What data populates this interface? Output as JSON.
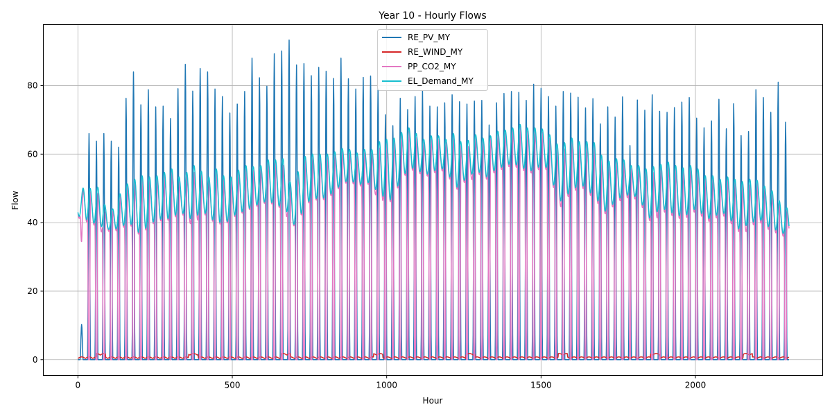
{
  "chart_data": {
    "type": "line",
    "title": "Year 10 - Hourly Flows",
    "xlabel": "Hour",
    "ylabel": "Flow",
    "xlim": [
      -112,
      2412
    ],
    "ylim": [
      -4.6,
      97.8
    ],
    "xticks": [
      0,
      500,
      1000,
      1500,
      2000
    ],
    "yticks": [
      0,
      20,
      40,
      60,
      80
    ],
    "grid": true,
    "legend_position": "top-center",
    "hours": 2304,
    "series": [
      {
        "name": "RE_PV_MY",
        "color": "#1f77b4",
        "description": "daily solar peaks, night 0",
        "daily_peaks": [
          10.3,
          66.0,
          63.8,
          66.0,
          63.8,
          62.0,
          76.3,
          84.0,
          74.4,
          78.8,
          73.8,
          74.0,
          70.4,
          79.1,
          86.2,
          78.4,
          85.0,
          84.0,
          79.0,
          76.8,
          72.0,
          74.6,
          78.3,
          88.0,
          82.3,
          79.8,
          89.3,
          90.1,
          93.3,
          86.0,
          86.4,
          82.9,
          85.3,
          84.2,
          82.1,
          88.0,
          82.0,
          79.0,
          82.4,
          82.8,
          79.1,
          71.5,
          68.3,
          76.3,
          73.0,
          76.8,
          78.4,
          74.0,
          73.8,
          75.0,
          77.3,
          75.3,
          74.6,
          75.5,
          75.7,
          68.5,
          75.0,
          77.7,
          78.3,
          78.0,
          75.7,
          80.4,
          79.2,
          76.8,
          74.0,
          78.3,
          77.8,
          76.6,
          73.5,
          76.2,
          68.8,
          73.8,
          70.8,
          76.7,
          62.5,
          75.8,
          72.8,
          77.3,
          72.5,
          72.2,
          73.6,
          75.2,
          76.5,
          70.5,
          67.7,
          69.7,
          76.0,
          67.4,
          74.7,
          65.4,
          66.6,
          78.8,
          76.5,
          72.2,
          81.0,
          69.3,
          66.8,
          71.5,
          76.0
        ]
      },
      {
        "name": "RE_WIND_MY",
        "color": "#d62728",
        "description": "low, 0 to 2"
      },
      {
        "name": "PP_CO2_MY",
        "color": "#e377c2",
        "description": "daily cycle between 0 and demand"
      },
      {
        "name": "EL_Demand_MY",
        "color": "#17becf",
        "description": "daily demand minima and maxima",
        "daily_min": [
          42,
          41,
          40,
          39,
          38,
          38,
          39,
          40,
          37,
          38,
          40,
          41,
          41,
          42,
          43,
          41,
          42,
          43,
          41,
          40,
          40,
          42,
          43,
          44,
          45,
          46,
          46,
          45,
          44,
          39,
          42,
          46,
          47,
          47,
          48,
          50,
          52,
          52,
          51,
          52,
          50,
          48,
          46,
          50,
          54,
          56,
          55,
          54,
          55,
          56,
          54,
          50,
          52,
          54,
          55,
          53,
          55,
          56,
          57,
          57,
          56,
          55,
          56,
          57,
          52,
          46,
          48,
          50,
          51,
          49,
          47,
          43,
          45,
          47,
          48,
          48,
          46,
          41,
          43,
          44,
          43,
          42,
          42,
          44,
          43,
          41,
          42,
          43,
          41,
          38,
          39,
          40,
          41,
          39,
          38,
          37,
          36,
          34,
          38
        ],
        "daily_max": [
          46,
          52,
          49,
          51,
          42,
          45,
          50,
          52,
          53,
          54,
          53,
          54,
          55,
          56,
          52,
          56,
          57,
          54,
          53,
          57,
          52,
          54,
          56,
          57,
          56,
          57,
          59,
          58,
          59,
          48,
          58,
          60,
          60,
          60,
          60,
          61,
          62,
          61,
          60,
          62,
          61,
          65,
          64,
          65,
          67,
          68,
          65,
          64,
          66,
          65,
          64,
          67,
          62,
          65,
          66,
          64,
          66,
          67,
          67,
          68,
          69,
          67,
          68,
          67,
          65,
          62,
          64,
          65,
          63,
          64,
          63,
          58,
          58,
          59,
          58,
          56,
          57,
          55,
          57,
          57,
          58,
          56,
          56,
          57,
          55,
          53,
          54,
          52,
          54,
          52,
          52,
          53,
          52,
          50,
          49,
          45,
          44,
          45,
          49
        ]
      }
    ]
  }
}
